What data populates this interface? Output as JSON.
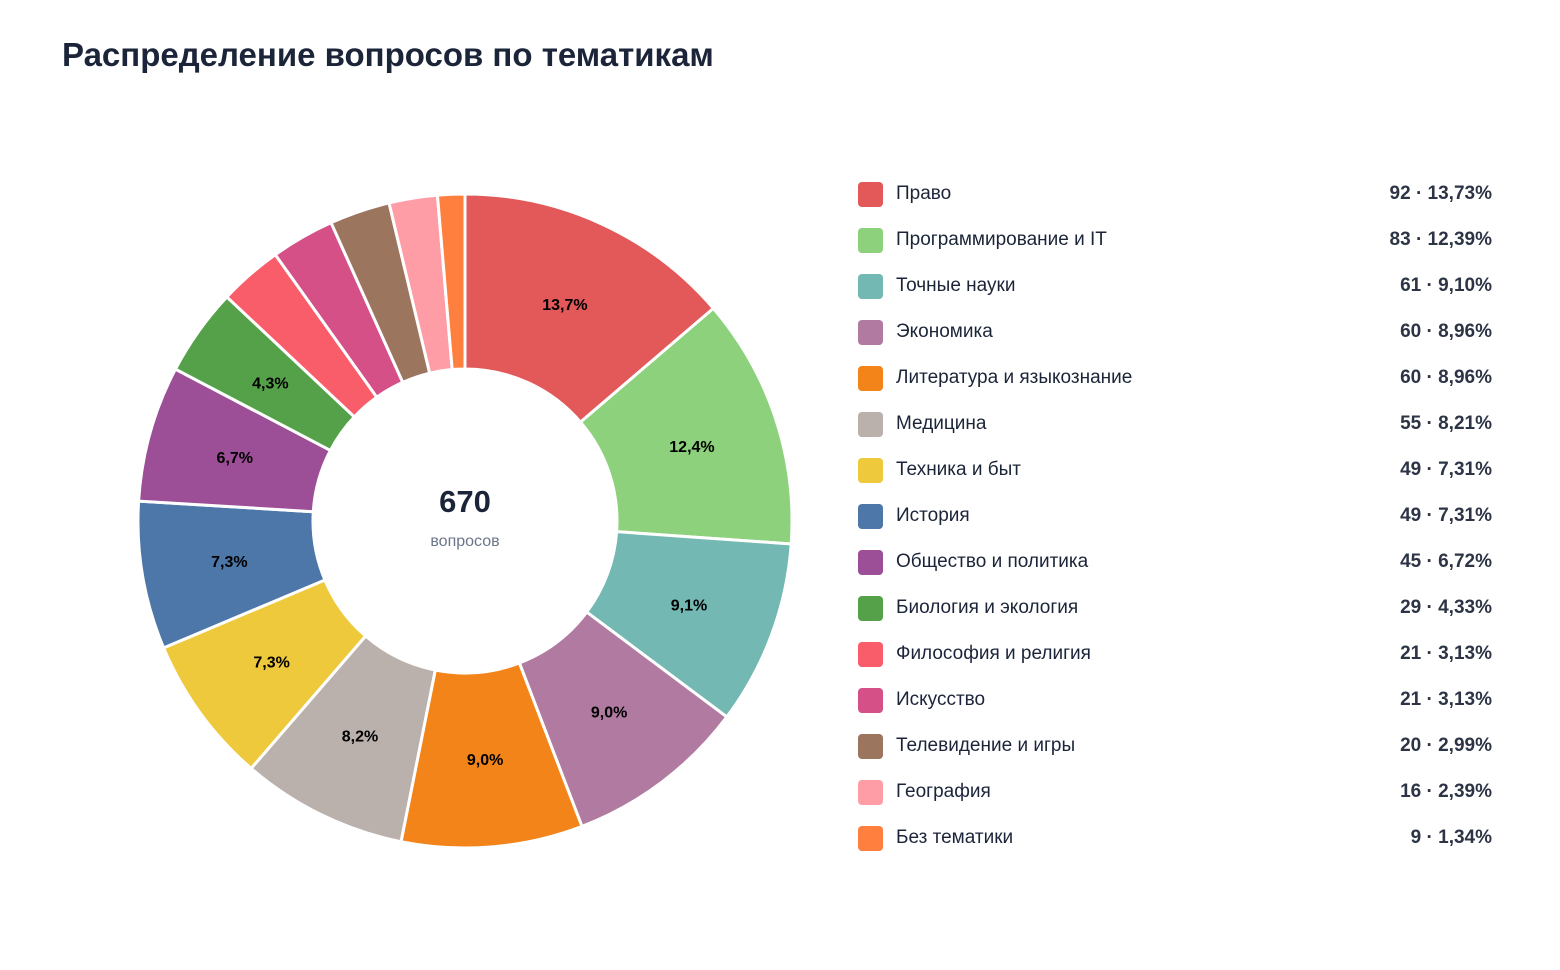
{
  "title": "Распределение вопросов по тематикам",
  "center": {
    "total": "670",
    "caption": "вопросов"
  },
  "chart_data": {
    "type": "pie",
    "donut": true,
    "title": "Распределение вопросов по тематикам",
    "total": 670,
    "legend_position": "right",
    "slices": [
      {
        "name": "Право",
        "value": 92,
        "percent": 13.73,
        "label": "13,7%",
        "legend_value": "92 · 13,73%",
        "color": "#e35858"
      },
      {
        "name": "Программирование и IT",
        "value": 83,
        "percent": 12.39,
        "label": "12,4%",
        "legend_value": "83 · 12,39%",
        "color": "#8dd17c"
      },
      {
        "name": "Точные науки",
        "value": 61,
        "percent": 9.1,
        "label": "9,1%",
        "legend_value": "61 · 9,10%",
        "color": "#73b8b2"
      },
      {
        "name": "Экономика",
        "value": 60,
        "percent": 8.96,
        "label": "9,0%",
        "legend_value": "60 · 8,96%",
        "color": "#b07aa1"
      },
      {
        "name": "Литература и языкознание",
        "value": 60,
        "percent": 8.96,
        "label": "9,0%",
        "legend_value": "60 · 8,96%",
        "color": "#f28419"
      },
      {
        "name": "Медицина",
        "value": 55,
        "percent": 8.21,
        "label": "8,2%",
        "legend_value": "55 · 8,21%",
        "color": "#bab0ac"
      },
      {
        "name": "Техника и быт",
        "value": 49,
        "percent": 7.31,
        "label": "7,3%",
        "legend_value": "49 · 7,31%",
        "color": "#edc93b"
      },
      {
        "name": "История",
        "value": 49,
        "percent": 7.31,
        "label": "7,3%",
        "legend_value": "49 · 7,31%",
        "color": "#4c77a8"
      },
      {
        "name": "Общество и политика",
        "value": 45,
        "percent": 6.72,
        "label": "6,7%",
        "legend_value": "45 · 6,72%",
        "color": "#9c4f96"
      },
      {
        "name": "Биология и экология",
        "value": 29,
        "percent": 4.33,
        "label": "4,3%",
        "legend_value": "29 · 4,33%",
        "color": "#55a14a"
      },
      {
        "name": "Философия и религия",
        "value": 21,
        "percent": 3.13,
        "label": "",
        "legend_value": "21 · 3,13%",
        "color": "#f95d6a"
      },
      {
        "name": "Искусство",
        "value": 21,
        "percent": 3.13,
        "label": "",
        "legend_value": "21 · 3,13%",
        "color": "#d45087"
      },
      {
        "name": "Телевидение и игры",
        "value": 20,
        "percent": 2.99,
        "label": "",
        "legend_value": "20 · 2,99%",
        "color": "#9c755f"
      },
      {
        "name": "География",
        "value": 16,
        "percent": 2.39,
        "label": "",
        "legend_value": "16 · 2,39%",
        "color": "#ff9da7"
      },
      {
        "name": "Без тематики",
        "value": 9,
        "percent": 1.34,
        "label": "",
        "legend_value": "9 · 1,34%",
        "color": "#ff7f3f"
      }
    ]
  }
}
